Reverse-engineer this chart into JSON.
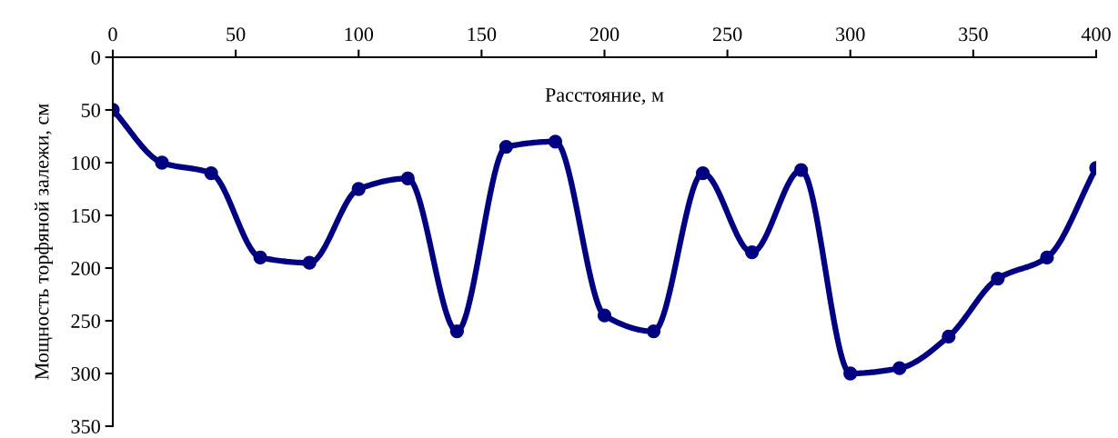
{
  "chart_data": {
    "type": "line",
    "xlabel": "Расстояние, м",
    "ylabel": "Мощность торфяной залежи, см",
    "x": [
      0,
      20,
      40,
      60,
      80,
      100,
      120,
      140,
      160,
      180,
      200,
      220,
      240,
      260,
      280,
      300,
      320,
      340,
      360,
      380,
      400
    ],
    "series": [
      {
        "color": "#000080",
        "values": [
          50,
          100,
          110,
          190,
          195,
          125,
          115,
          260,
          85,
          80,
          245,
          260,
          110,
          185,
          107,
          300,
          295,
          265,
          210,
          190,
          105
        ]
      }
    ],
    "xlim": [
      0,
      400
    ],
    "xticks": [
      0,
      50,
      100,
      150,
      200,
      250,
      300,
      350,
      400
    ],
    "ylim": [
      350,
      0
    ],
    "yticks": [
      0,
      50,
      100,
      150,
      200,
      250,
      300,
      350
    ],
    "grid": false,
    "legend": false,
    "marker": "circle",
    "line_style": "solid"
  }
}
